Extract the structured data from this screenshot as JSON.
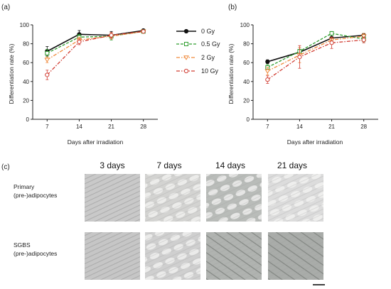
{
  "panel_labels": {
    "a": "(a)",
    "b": "(b)",
    "c": "(c)"
  },
  "legend": [
    {
      "label": "0 Gy",
      "color": "#111111",
      "marker": "circle",
      "dash": "solid"
    },
    {
      "label": "0.5 Gy",
      "color": "#2e9d2e",
      "marker": "square",
      "dash": "dashed"
    },
    {
      "label": "2 Gy",
      "color": "#f08a3c",
      "marker": "triangle-down",
      "dash": "dashdot"
    },
    {
      "label": "10 Gy",
      "color": "#d13c32",
      "marker": "circle-open",
      "dash": "dashdot"
    }
  ],
  "chart_data": [
    {
      "type": "line",
      "panel": "(a)",
      "x": [
        7,
        14,
        21,
        28
      ],
      "xticks": [
        "7",
        "14",
        "21",
        "28"
      ],
      "xlabel": "Days after irradiation",
      "ylabel": "Differentiation rate (%)",
      "ylim": [
        0,
        100
      ],
      "yticks": [
        0,
        20,
        40,
        60,
        80,
        100
      ],
      "series": [
        {
          "name": "0 Gy",
          "values": [
            72,
            90,
            89,
            94
          ],
          "errors": [
            5,
            4,
            4,
            1
          ]
        },
        {
          "name": "0.5 Gy",
          "values": [
            70,
            87,
            88,
            93
          ],
          "errors": [
            4,
            3,
            4,
            1
          ]
        },
        {
          "name": "2 Gy",
          "values": [
            63,
            84,
            88,
            93
          ],
          "errors": [
            3,
            3,
            3,
            1
          ]
        },
        {
          "name": "10 Gy",
          "values": [
            47,
            82,
            89,
            93
          ],
          "errors": [
            5,
            3,
            3,
            1
          ]
        }
      ]
    },
    {
      "type": "line",
      "panel": "(b)",
      "x": [
        7,
        14,
        21,
        28
      ],
      "xticks": [
        "7",
        "14",
        "21",
        "28"
      ],
      "xlabel": "Days after irradiation",
      "ylabel": "Differentiation rate (%)",
      "ylim": [
        0,
        100
      ],
      "yticks": [
        0,
        20,
        40,
        60,
        80,
        100
      ],
      "series": [
        {
          "name": "0 Gy",
          "values": [
            61,
            71,
            86,
            89
          ],
          "errors": [
            2,
            3,
            3,
            2
          ]
        },
        {
          "name": "0.5 Gy",
          "values": [
            55,
            72,
            91,
            85
          ],
          "errors": [
            3,
            4,
            2,
            3
          ]
        },
        {
          "name": "2 Gy",
          "values": [
            51,
            68,
            84,
            88
          ],
          "errors": [
            4,
            8,
            3,
            3
          ]
        },
        {
          "name": "10 Gy",
          "values": [
            42,
            66,
            81,
            84
          ],
          "errors": [
            4,
            12,
            6,
            3
          ]
        }
      ]
    }
  ],
  "micrographs": {
    "columns": [
      "3 days",
      "7 days",
      "14 days",
      "21 days"
    ],
    "rows": [
      {
        "line1": "Primary",
        "line2": "(pre-)adipocytes"
      },
      {
        "line1": "SGBS",
        "line2": "(pre-)adipocytes"
      }
    ],
    "tones": [
      [
        "#c9c9c9",
        "#d3d3d1",
        "#b9bcb9",
        "#dcdcdc"
      ],
      [
        "#c6c6c6",
        "#cfcfcf",
        "#b0b3b0",
        "#a9aca9"
      ]
    ]
  }
}
